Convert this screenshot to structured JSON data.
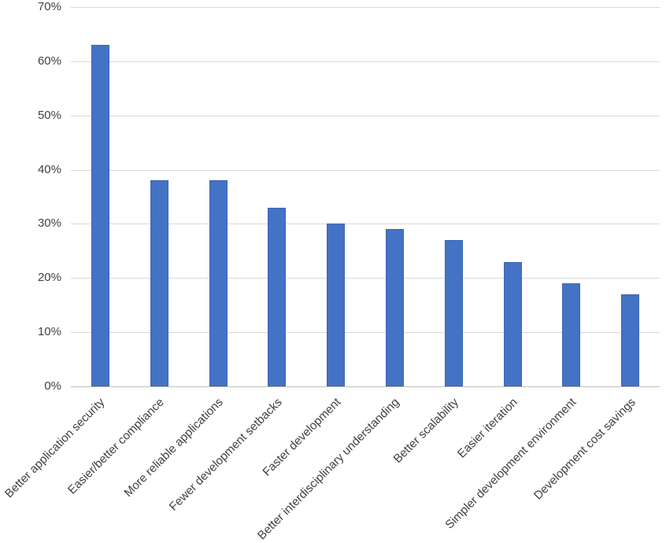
{
  "chart_data": {
    "type": "bar",
    "title": "",
    "xlabel": "",
    "ylabel": "",
    "ylim": [
      0,
      70
    ],
    "y_ticks": [
      "0%",
      "10%",
      "20%",
      "30%",
      "40%",
      "50%",
      "60%",
      "70%"
    ],
    "grid": true,
    "legend": null,
    "bar_color": "#4472c4",
    "categories": [
      "Better application security",
      "Easier/better compliance",
      "More reliable applications",
      "Fewer development setbacks",
      "Faster development",
      "Better interdisciplinary understanding",
      "Better scalability",
      "Easier iteration",
      "Simpler development environment",
      "Development cost savings"
    ],
    "values": [
      63,
      38,
      38,
      33,
      30,
      29,
      27,
      23,
      19,
      17
    ]
  }
}
